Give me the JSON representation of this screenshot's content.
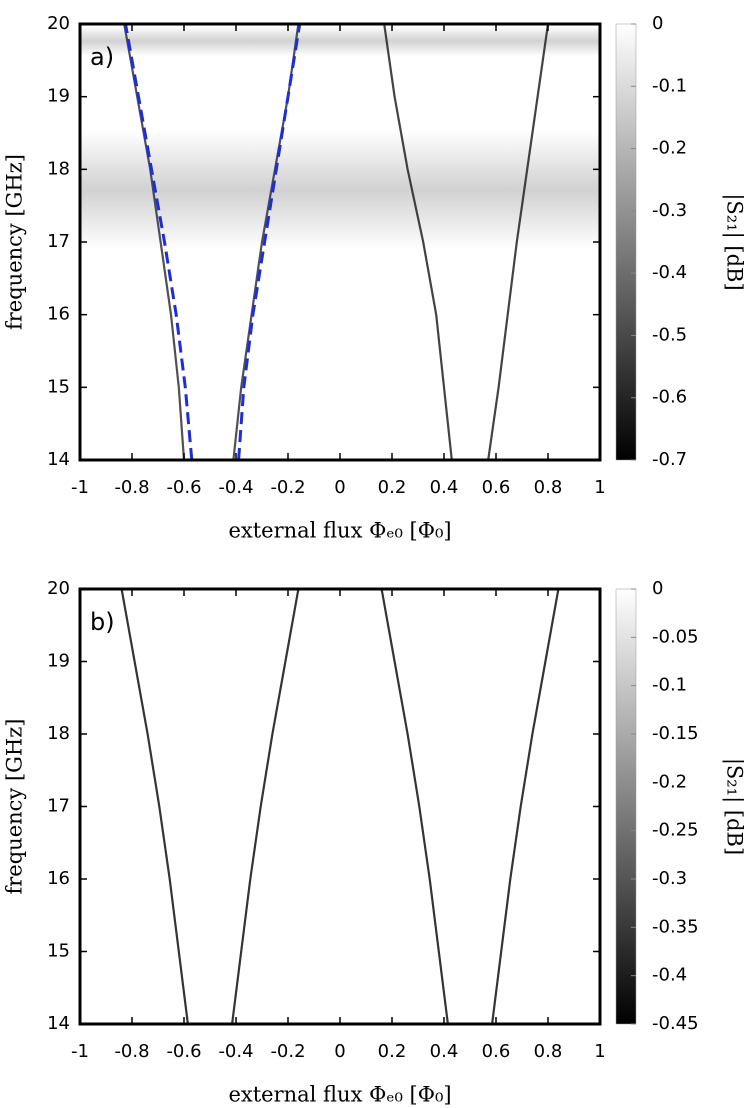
{
  "chart_data": [
    {
      "type": "heatmap",
      "label": "a)",
      "ylabel": "frequency [GHz]",
      "xlabel": "external flux Φₑ₀ [Φ₀]",
      "xlim": [
        -1,
        1
      ],
      "xticks": [
        -1,
        -0.8,
        -0.6,
        -0.4,
        -0.2,
        0,
        0.2,
        0.4,
        0.6,
        0.8,
        1
      ],
      "ylim": [
        14,
        20
      ],
      "yticks": [
        14,
        15,
        16,
        17,
        18,
        19,
        20
      ],
      "clim": [
        -0.7,
        0
      ],
      "cticks": [
        0,
        -0.1,
        -0.2,
        -0.3,
        -0.4,
        -0.5,
        -0.6,
        -0.7
      ],
      "colorbar_label": "|S₂₁| [dB]",
      "y": [
        14,
        15,
        16,
        17,
        18,
        19,
        20
      ],
      "series": [
        {
          "color": "#333333",
          "x": [
            -0.6,
            -0.62,
            -0.65,
            -0.69,
            -0.73,
            -0.78,
            -0.83
          ]
        },
        {
          "color": "#333333",
          "x": [
            -0.41,
            -0.38,
            -0.34,
            -0.3,
            -0.25,
            -0.2,
            -0.16
          ]
        },
        {
          "color": "#222222",
          "x": [
            0.43,
            0.4,
            0.37,
            0.32,
            0.26,
            0.21,
            0.17
          ]
        },
        {
          "color": "#222222",
          "x": [
            0.57,
            0.61,
            0.645,
            0.68,
            0.72,
            0.76,
            0.8
          ]
        },
        {
          "color": "#1a2ee0",
          "dashed": true,
          "x": [
            -0.57,
            -0.595,
            -0.63,
            -0.675,
            -0.725,
            -0.775,
            -0.825
          ]
        },
        {
          "color": "#1a2ee0",
          "dashed": true,
          "x": [
            -0.39,
            -0.37,
            -0.335,
            -0.29,
            -0.245,
            -0.2,
            -0.155
          ]
        }
      ]
    },
    {
      "type": "heatmap",
      "label": "b)",
      "ylabel": "frequency [GHz]",
      "xlabel": "external flux Φₑ₀ [Φ₀]",
      "xlim": [
        -1,
        1
      ],
      "xticks": [
        -1,
        -0.8,
        -0.6,
        -0.4,
        -0.2,
        0,
        0.2,
        0.4,
        0.6,
        0.8,
        1
      ],
      "ylim": [
        14,
        20
      ],
      "yticks": [
        14,
        15,
        16,
        17,
        18,
        19,
        20
      ],
      "clim": [
        -0.45,
        0
      ],
      "cticks": [
        0,
        -0.05,
        -0.1,
        -0.15,
        -0.2,
        -0.25,
        -0.3,
        -0.35,
        -0.4,
        -0.45
      ],
      "colorbar_label": "|S₂₁| [dB]",
      "y": [
        14,
        15,
        16,
        17,
        18,
        19,
        20
      ],
      "series": [
        {
          "color": "#111111",
          "x": [
            -0.585,
            -0.62,
            -0.655,
            -0.695,
            -0.74,
            -0.79,
            -0.84
          ]
        },
        {
          "color": "#111111",
          "x": [
            -0.415,
            -0.38,
            -0.345,
            -0.305,
            -0.26,
            -0.21,
            -0.16
          ]
        },
        {
          "color": "#111111",
          "x": [
            0.415,
            0.38,
            0.345,
            0.305,
            0.26,
            0.21,
            0.16
          ]
        },
        {
          "color": "#111111",
          "x": [
            0.585,
            0.62,
            0.655,
            0.695,
            0.74,
            0.79,
            0.84
          ]
        }
      ]
    }
  ]
}
